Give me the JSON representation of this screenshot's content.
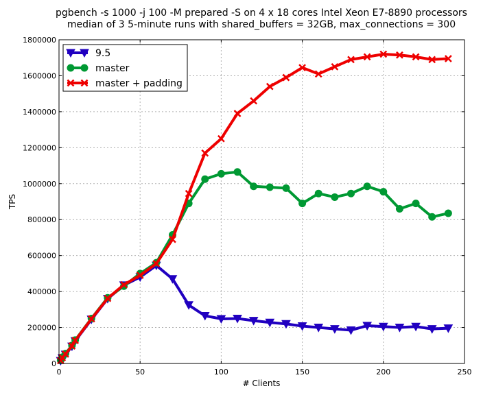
{
  "chart_data": {
    "type": "line",
    "title_line1": "pgbench -s 1000 -j 100 -M prepared -S on 4 x 18 cores Intel Xeon E7-8890 processors",
    "title_line2": "median of 3 5-minute runs with shared_buffers = 32GB, max_connections = 300",
    "xlabel": "# Clients",
    "ylabel": "TPS",
    "xlim": [
      0,
      250
    ],
    "ylim": [
      0,
      1800000
    ],
    "xticks": [
      "0",
      "50",
      "100",
      "150",
      "200",
      "250"
    ],
    "yticks": [
      "0",
      "200000",
      "400000",
      "600000",
      "800000",
      "1000000",
      "1200000",
      "1400000",
      "1600000",
      "1800000"
    ],
    "grid": true,
    "legend_position": "top-left",
    "series": [
      {
        "name": "9.5",
        "color": "#2000c0",
        "marker": "triangle-down",
        "x": [
          1,
          2,
          4,
          8,
          10,
          20,
          30,
          40,
          50,
          60,
          70,
          80,
          90,
          100,
          110,
          120,
          130,
          140,
          150,
          160,
          170,
          180,
          190,
          200,
          210,
          220,
          230,
          240
        ],
        "y": [
          15000,
          30000,
          50000,
          95000,
          125000,
          245000,
          360000,
          435000,
          480000,
          545000,
          470000,
          325000,
          265000,
          248000,
          250000,
          238000,
          228000,
          220000,
          208000,
          200000,
          192000,
          185000,
          210000,
          205000,
          200000,
          205000,
          192000,
          196000
        ]
      },
      {
        "name": "master",
        "color": "#009933",
        "marker": "circle",
        "x": [
          1,
          2,
          4,
          8,
          10,
          20,
          30,
          40,
          50,
          60,
          70,
          80,
          90,
          100,
          110,
          120,
          130,
          140,
          150,
          160,
          170,
          180,
          190,
          200,
          210,
          220,
          230,
          240
        ],
        "y": [
          18000,
          35000,
          55000,
          100000,
          130000,
          250000,
          365000,
          430000,
          500000,
          560000,
          715000,
          890000,
          1025000,
          1055000,
          1065000,
          985000,
          980000,
          975000,
          890000,
          945000,
          925000,
          945000,
          985000,
          955000,
          860000,
          890000,
          815000,
          835000
        ]
      },
      {
        "name": "master + padding",
        "color": "#ee0000",
        "marker": "x",
        "x": [
          1,
          2,
          4,
          8,
          10,
          20,
          30,
          40,
          50,
          60,
          70,
          80,
          90,
          100,
          110,
          120,
          130,
          140,
          150,
          160,
          170,
          180,
          190,
          200,
          210,
          220,
          230,
          240
        ],
        "y": [
          16000,
          32000,
          52000,
          97000,
          128000,
          248000,
          362000,
          438000,
          490000,
          555000,
          690000,
          945000,
          1170000,
          1250000,
          1390000,
          1460000,
          1540000,
          1590000,
          1645000,
          1610000,
          1650000,
          1690000,
          1705000,
          1720000,
          1715000,
          1705000,
          1690000,
          1695000
        ]
      }
    ]
  }
}
